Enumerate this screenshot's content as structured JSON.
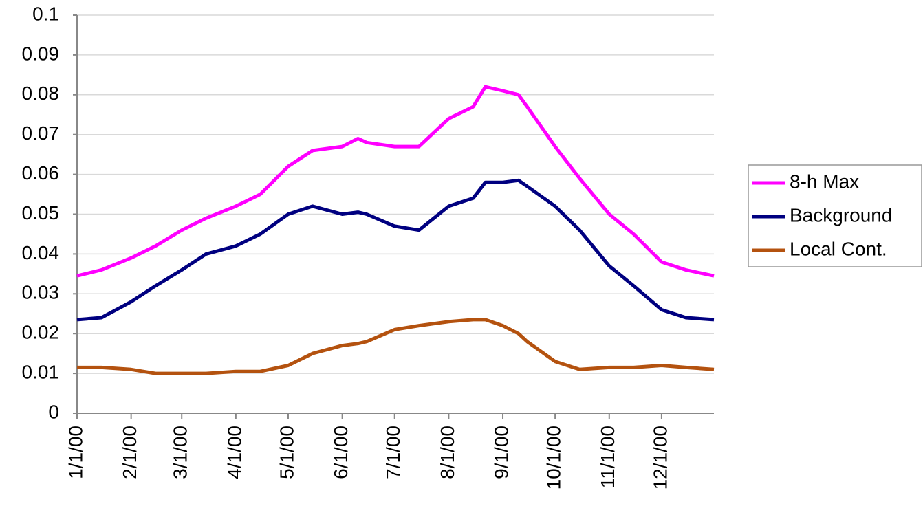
{
  "chart_data": {
    "type": "line",
    "x": [
      "2000-01-01",
      "2000-01-15",
      "2000-02-01",
      "2000-02-15",
      "2000-03-01",
      "2000-03-15",
      "2000-04-01",
      "2000-04-15",
      "2000-05-01",
      "2000-05-15",
      "2000-06-01",
      "2000-06-10",
      "2000-06-15",
      "2000-07-01",
      "2000-07-15",
      "2000-08-01",
      "2000-08-15",
      "2000-08-22",
      "2000-09-01",
      "2000-09-10",
      "2000-09-15",
      "2000-10-01",
      "2000-10-15",
      "2000-11-01",
      "2000-11-15",
      "2000-12-01",
      "2000-12-15",
      "2000-12-31"
    ],
    "series": [
      {
        "name": "8-h Max",
        "color": "#ff00ff",
        "values": [
          0.0345,
          0.036,
          0.039,
          0.042,
          0.046,
          0.049,
          0.052,
          0.055,
          0.062,
          0.066,
          0.067,
          0.069,
          0.068,
          0.067,
          0.067,
          0.074,
          0.077,
          0.082,
          0.081,
          0.08,
          0.077,
          0.067,
          0.059,
          0.05,
          0.045,
          0.038,
          0.036,
          0.0345
        ]
      },
      {
        "name": "Background",
        "color": "#000080",
        "values": [
          0.0235,
          0.024,
          0.028,
          0.032,
          0.036,
          0.04,
          0.042,
          0.045,
          0.05,
          0.052,
          0.05,
          0.0505,
          0.05,
          0.047,
          0.046,
          0.052,
          0.054,
          0.058,
          0.058,
          0.0585,
          0.057,
          0.052,
          0.046,
          0.037,
          0.032,
          0.026,
          0.024,
          0.0235
        ]
      },
      {
        "name": "Local Cont.",
        "color": "#b4520f",
        "values": [
          0.0115,
          0.0115,
          0.011,
          0.01,
          0.01,
          0.01,
          0.0105,
          0.0105,
          0.012,
          0.015,
          0.017,
          0.0175,
          0.018,
          0.021,
          0.022,
          0.023,
          0.0235,
          0.0235,
          0.022,
          0.02,
          0.018,
          0.013,
          0.011,
          0.0115,
          0.0115,
          0.012,
          0.0115,
          0.011
        ]
      }
    ],
    "xlim": [
      "2000-01-01",
      "2000-12-31"
    ],
    "xticks": [
      {
        "value": "2000-01-01",
        "label": "1/1/00"
      },
      {
        "value": "2000-02-01",
        "label": "2/1/00"
      },
      {
        "value": "2000-03-01",
        "label": "3/1/00"
      },
      {
        "value": "2000-04-01",
        "label": "4/1/00"
      },
      {
        "value": "2000-05-01",
        "label": "5/1/00"
      },
      {
        "value": "2000-06-01",
        "label": "6/1/00"
      },
      {
        "value": "2000-07-01",
        "label": "7/1/00"
      },
      {
        "value": "2000-08-01",
        "label": "8/1/00"
      },
      {
        "value": "2000-09-01",
        "label": "9/1/00"
      },
      {
        "value": "2000-10-01",
        "label": "10/1/00"
      },
      {
        "value": "2000-11-01",
        "label": "11/1/00"
      },
      {
        "value": "2000-12-01",
        "label": "12/1/00"
      }
    ],
    "ylim": [
      0,
      0.1
    ],
    "yticks": [
      0,
      0.01,
      0.02,
      0.03,
      0.04,
      0.05,
      0.06,
      0.07,
      0.08,
      0.09,
      0.1
    ],
    "grid": true,
    "legend": "right"
  }
}
